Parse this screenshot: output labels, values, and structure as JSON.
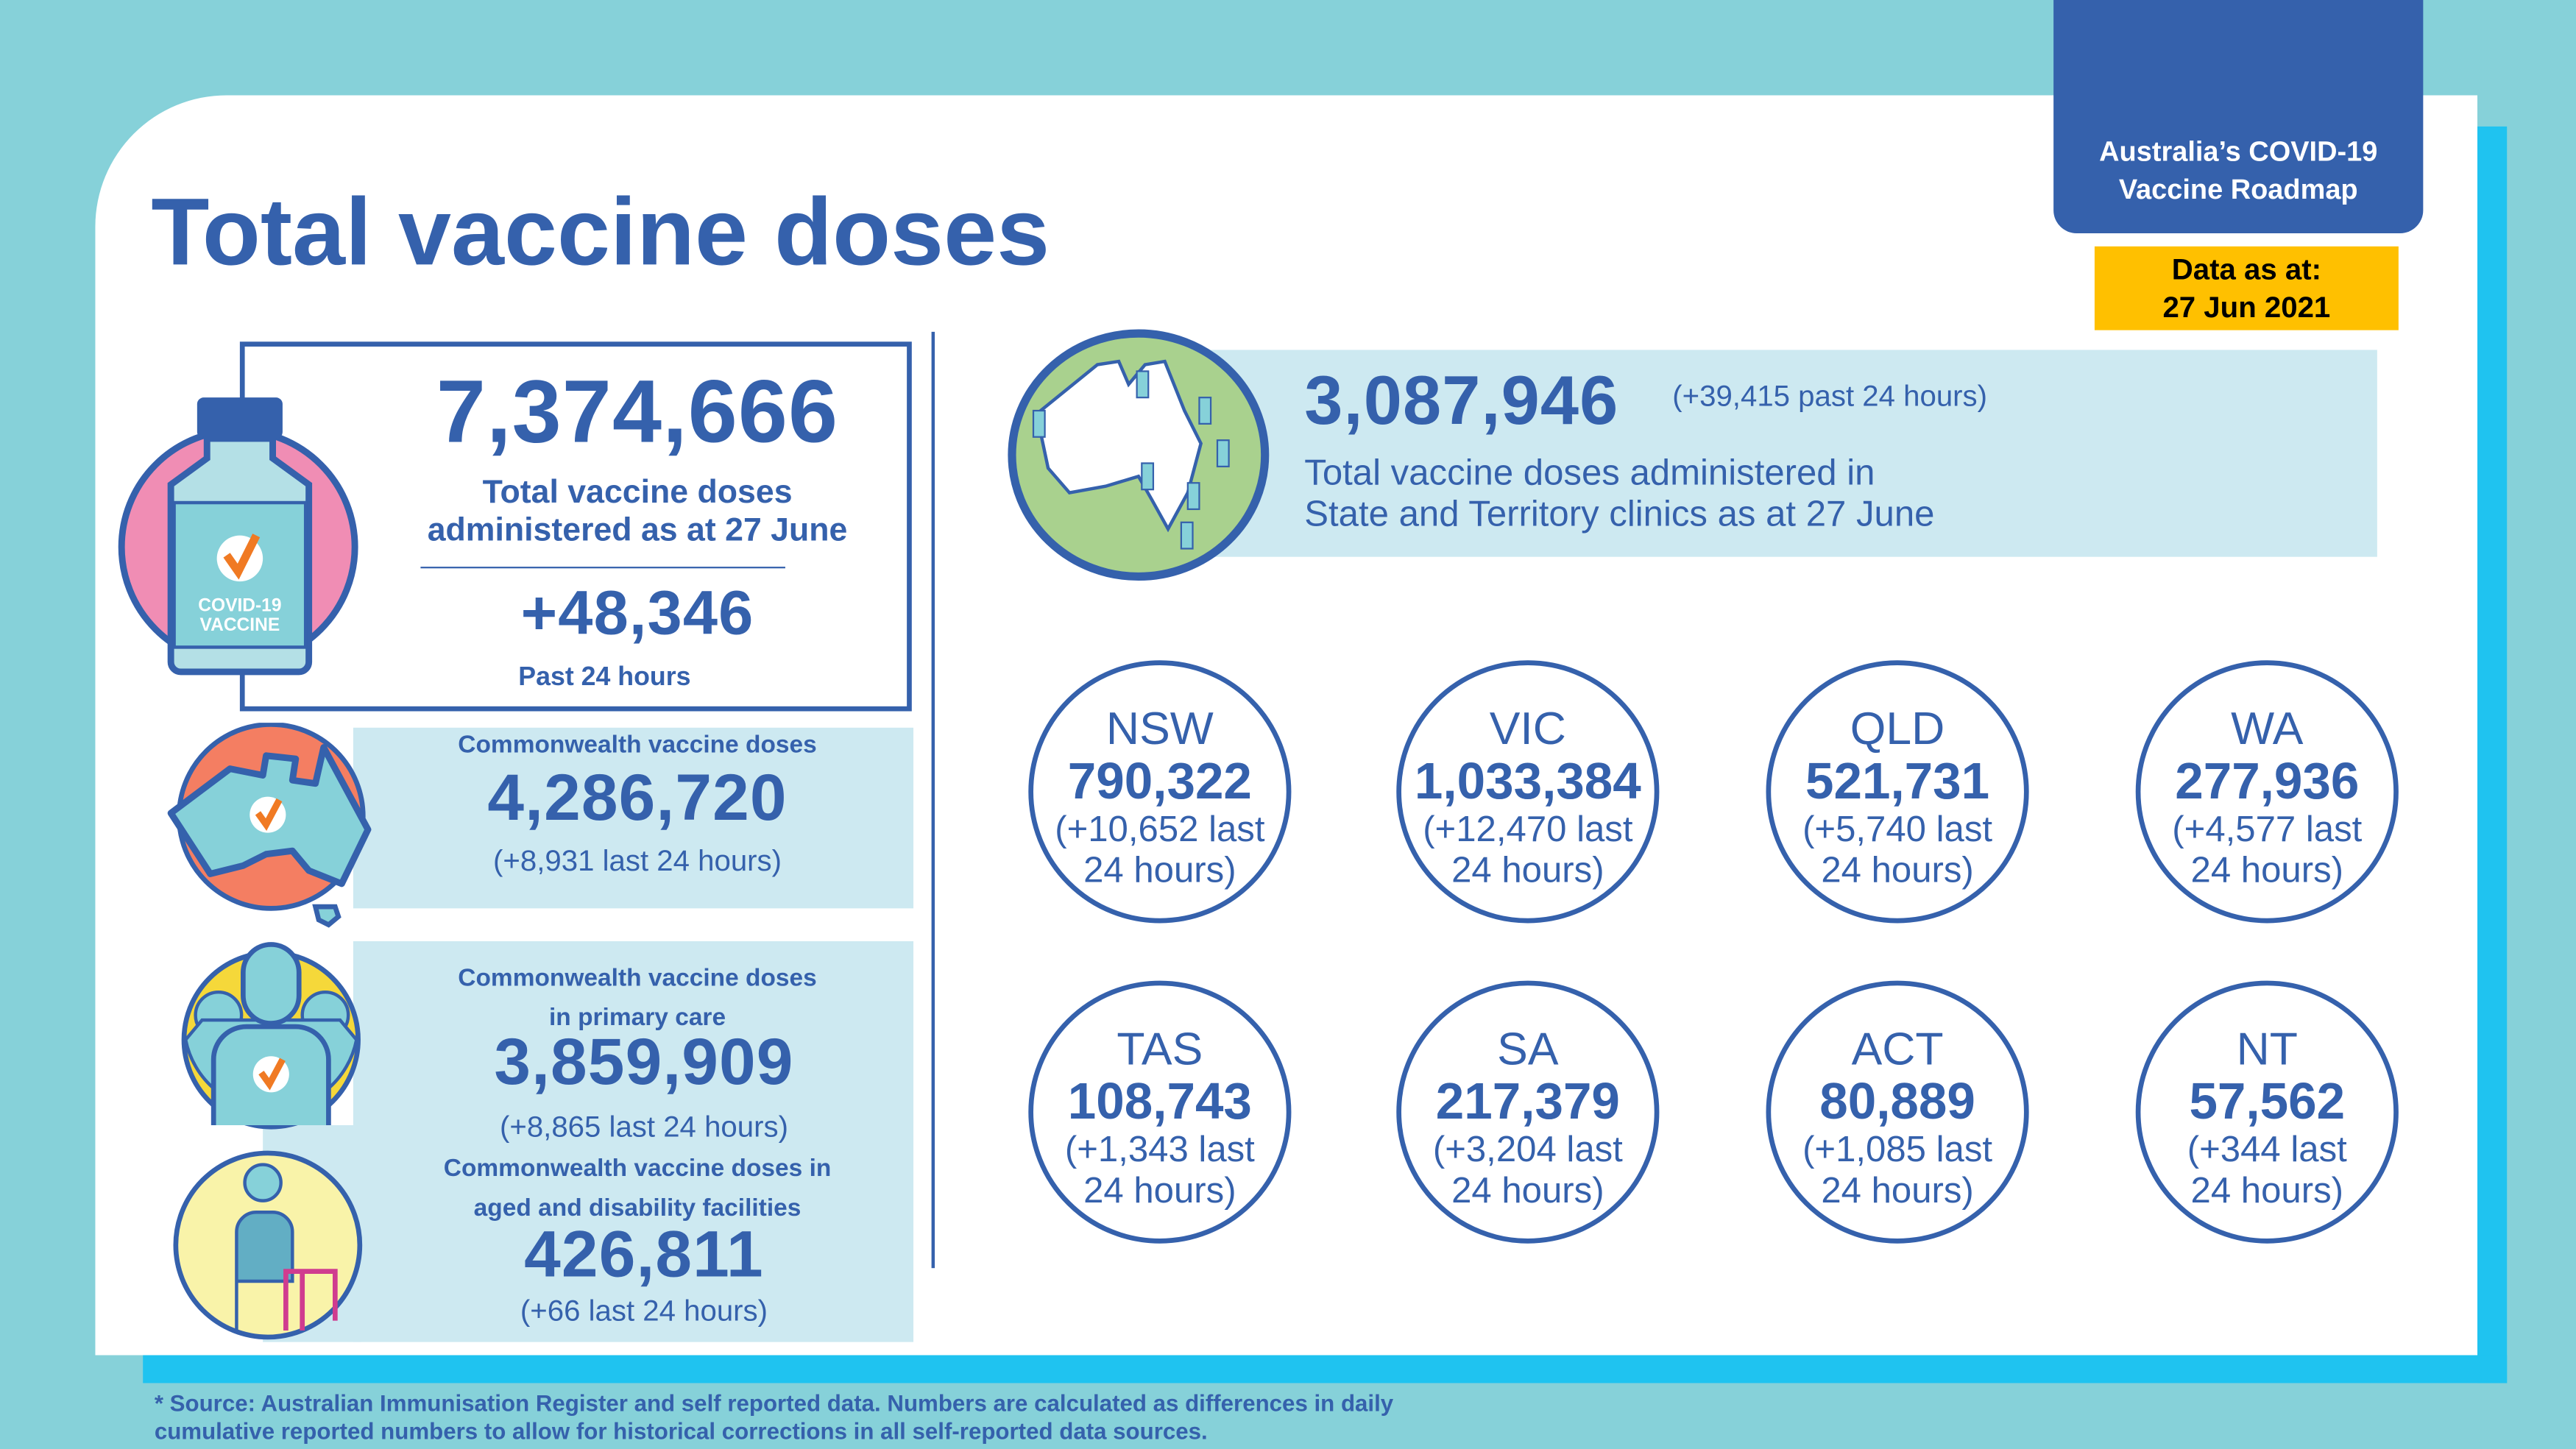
{
  "header": {
    "title": "Total vaccine doses",
    "roadmap_line1": "Australia’s COVID-19",
    "roadmap_line2": "Vaccine Roadmap",
    "data_as_at_label": "Data as at:",
    "data_as_at_date": "27 Jun 2021"
  },
  "total": {
    "value": "7,374,666",
    "label_line1": "Total vaccine doses",
    "label_line2": "administered as at 27 June",
    "change": "+48,346",
    "change_label": "Past 24 hours",
    "vial_label_line1": "COVID-19",
    "vial_label_line2": "VACCINE"
  },
  "commonwealth": {
    "label": "Commonwealth vaccine doses",
    "value": "4,286,720",
    "change": "(+8,931 last 24 hours)"
  },
  "primary_care": {
    "label_line1": "Commonwealth vaccine doses",
    "label_line2": "in primary care",
    "value": "3,859,909",
    "change": "(+8,865 last 24 hours)"
  },
  "aged_care": {
    "label_line1": "Commonwealth vaccine doses in",
    "label_line2": "aged and disability facilities",
    "value": "426,811",
    "change": "(+66 last 24 hours)"
  },
  "state_total": {
    "value": "3,087,946",
    "change": "(+39,415 past 24 hours)",
    "label_line1": "Total vaccine doses administered in",
    "label_line2": "State and Territory clinics as at 27 June"
  },
  "states": [
    {
      "name": "NSW",
      "value": "790,322",
      "change_line1": "(+10,652 last",
      "change_line2": "24 hours)"
    },
    {
      "name": "VIC",
      "value": "1,033,384",
      "change_line1": "(+12,470 last",
      "change_line2": "24 hours)"
    },
    {
      "name": "QLD",
      "value": "521,731",
      "change_line1": "(+5,740 last",
      "change_line2": "24 hours)"
    },
    {
      "name": "WA",
      "value": "277,936",
      "change_line1": "(+4,577 last",
      "change_line2": "24 hours)"
    },
    {
      "name": "TAS",
      "value": "108,743",
      "change_line1": "(+1,343 last",
      "change_line2": "24 hours)"
    },
    {
      "name": "SA",
      "value": "217,379",
      "change_line1": "(+3,204 last",
      "change_line2": "24 hours)"
    },
    {
      "name": "ACT",
      "value": "80,889",
      "change_line1": "(+1,085 last",
      "change_line2": "24 hours)"
    },
    {
      "name": "NT",
      "value": "57,562",
      "change_line1": "(+344 last",
      "change_line2": "24 hours)"
    }
  ],
  "footnote": {
    "line1": "* Source: Australian Immunisation Register and self reported data. Numbers are calculated as differences in daily",
    "line2": "cumulative reported numbers to allow for historical corrections in all self-reported data sources."
  },
  "colors": {
    "primary": "#3561ac",
    "background": "#86d1d9",
    "accent_strip": "#1fc3f0",
    "panel": "#cde9f1",
    "date_badge": "#ffc000",
    "check": "#f07a23"
  }
}
